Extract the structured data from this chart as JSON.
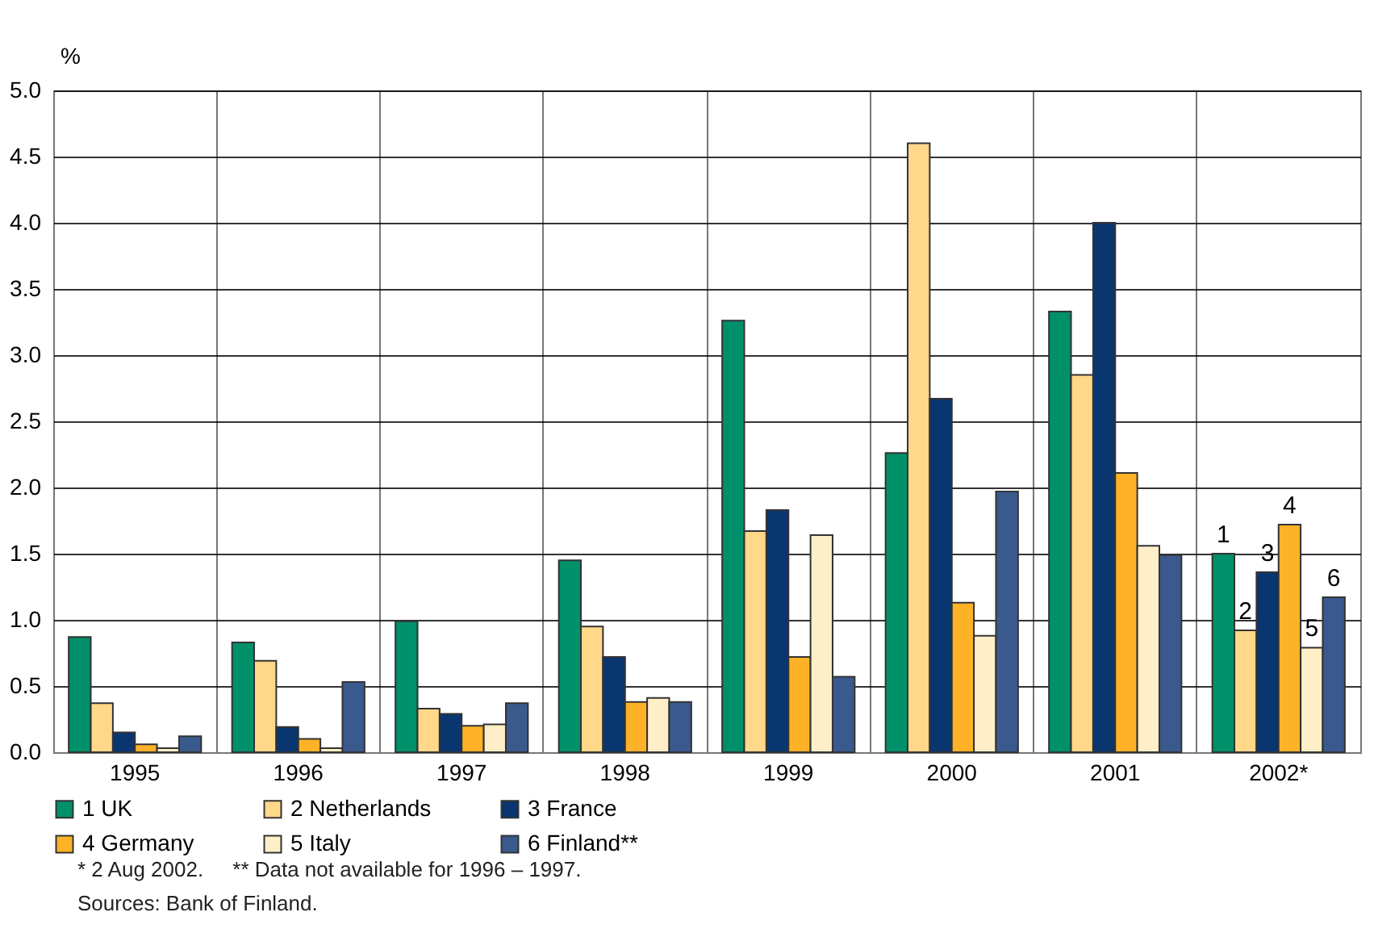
{
  "chart_data": {
    "type": "bar",
    "ylabel": "%",
    "categories": [
      "1995",
      "1996",
      "1997",
      "1998",
      "1999",
      "2000",
      "2001",
      "2002*"
    ],
    "series": [
      {
        "name": "1 UK",
        "color": "#00906a",
        "values": [
          0.87,
          0.83,
          0.99,
          1.45,
          3.26,
          2.26,
          3.33,
          1.5
        ]
      },
      {
        "name": "2 Netherlands",
        "color": "#ffd88a",
        "values": [
          0.37,
          0.69,
          0.33,
          0.95,
          1.67,
          4.6,
          2.85,
          0.92
        ]
      },
      {
        "name": "3 France",
        "color": "#0a3670",
        "values": [
          0.15,
          0.19,
          0.29,
          0.72,
          1.83,
          2.67,
          4.0,
          1.36
        ]
      },
      {
        "name": "4 Germany",
        "color": "#fdb228",
        "values": [
          0.06,
          0.1,
          0.2,
          0.38,
          0.72,
          1.13,
          2.11,
          1.72
        ]
      },
      {
        "name": "5 Italy",
        "color": "#ffefc8",
        "values": [
          0.03,
          0.03,
          0.21,
          0.41,
          1.64,
          0.88,
          1.56,
          0.79
        ]
      },
      {
        "name": "6 Finland**",
        "color": "#3a5a8e",
        "values": [
          0.12,
          0.53,
          0.37,
          0.38,
          0.57,
          1.97,
          1.49,
          1.17
        ]
      }
    ],
    "ylim": [
      0,
      5
    ],
    "yticks": [
      {
        "value": 0,
        "label": "0.0"
      },
      {
        "value": 0.5,
        "label": "0.5"
      },
      {
        "value": 1,
        "label": "1.0"
      },
      {
        "value": 1.5,
        "label": "1.5"
      },
      {
        "value": 2,
        "label": "2.0"
      },
      {
        "value": 2.5,
        "label": "2.5"
      },
      {
        "value": 3,
        "label": "3.0"
      },
      {
        "value": 3.5,
        "label": "3.5"
      },
      {
        "value": 4,
        "label": "4.0"
      },
      {
        "value": 4.5,
        "label": "4.5"
      },
      {
        "value": 5,
        "label": "5.0"
      }
    ],
    "grid": true,
    "legend": "bottom",
    "annotations": [
      {
        "text": "1",
        "x": "2002*",
        "y": 1.5
      },
      {
        "text": "2",
        "x": "2002*",
        "y": 0.92
      },
      {
        "text": "3",
        "x": "2002*",
        "y": 1.36
      },
      {
        "text": "4",
        "x": "2002*",
        "y": 1.72
      },
      {
        "text": "5",
        "x": "2002*",
        "y": 0.79
      },
      {
        "text": "6",
        "x": "2002*",
        "y": 1.17
      },
      "* 2 Aug 2002.     ** Data not available for 1996 – 1997.",
      "Sources: Bank of Finland."
    ]
  }
}
